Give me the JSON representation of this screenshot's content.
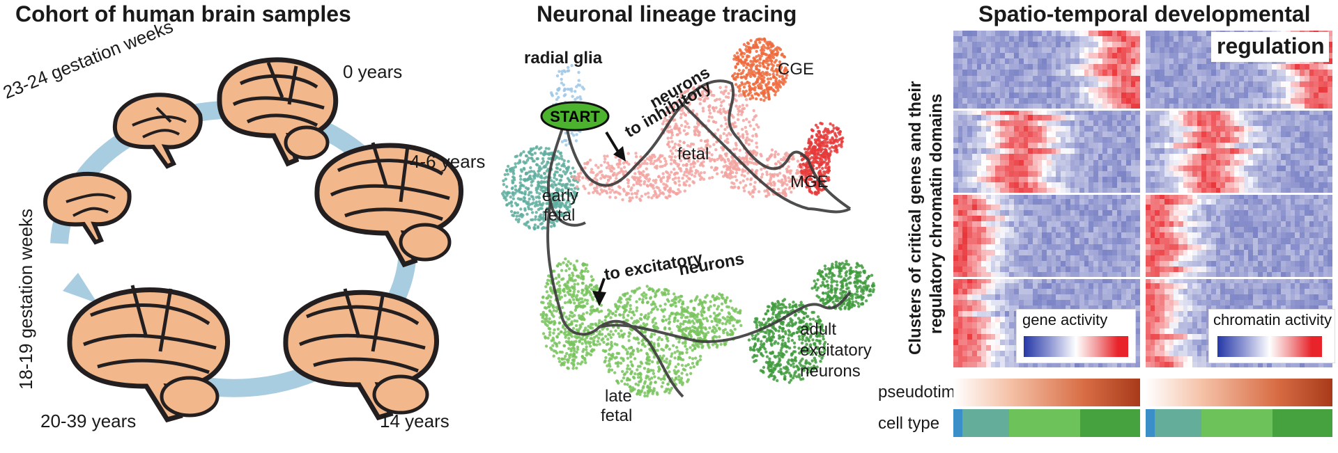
{
  "cohort": {
    "title": "Cohort of human brain samples",
    "labels": {
      "wk23": "23-24 gestation weeks",
      "wk18": "18-19 gestation weeks",
      "y0": "0 years",
      "y4": "4-6 years",
      "y14": "14 years",
      "y20": "20-39 years"
    },
    "colors": {
      "arrow": "#a9cde0",
      "brain": "#f2b78a",
      "outline": "#231f20"
    }
  },
  "lineage": {
    "title": "Neuronal lineage tracing",
    "start_label": "START",
    "labels": {
      "radial_glia": "radial glia",
      "to_inhibitory": "to inhibitory",
      "neurons1": "neurons",
      "cge": "CGE",
      "fetal": "fetal",
      "mge": "MGE",
      "early_fetal_1": "early",
      "early_fetal_2": "fetal",
      "to_excitatory": "to excitatory",
      "neurons2": "neurons",
      "adult_1": "adult",
      "adult_2": "excitatory",
      "adult_3": "neurons",
      "late_1": "late",
      "late_2": "fetal"
    },
    "colors": {
      "radial_glia": "#9ec7e6",
      "early_fetal": "#5fae9f",
      "inhib_fetal": "#f2a3a0",
      "cge": "#ee6a3c",
      "mge": "#e63a3a",
      "late_fetal": "#78c35d",
      "adult": "#3f9b3d",
      "trajectory": "#3a3a3a",
      "start_fill": "#4cb32e"
    }
  },
  "regulation": {
    "title_1": "Spatio-temporal developmental",
    "title_2": "regulation",
    "y_label_1": "Clusters of critical genes and their",
    "y_label_2": "regulatory chromatin domains",
    "legend_gene": "gene activity",
    "legend_chromatin": "chromatin activity",
    "pseudotime_label": "pseudotime",
    "celltype_label": "cell type",
    "colors": {
      "low": "#4b55b0",
      "mid": "#ffffff",
      "high": "#e8242a",
      "pseudo_start": "#ffffff",
      "pseudo_end": "#a83a1a"
    },
    "celltype_segments": [
      {
        "name": "radial glia",
        "color": "#3a8fc9",
        "frac": 0.05
      },
      {
        "name": "early fetal",
        "color": "#63ad9a",
        "frac": 0.25
      },
      {
        "name": "late fetal",
        "color": "#6dc35a",
        "frac": 0.38
      },
      {
        "name": "adult",
        "color": "#46a23e",
        "frac": 0.32
      }
    ]
  }
}
